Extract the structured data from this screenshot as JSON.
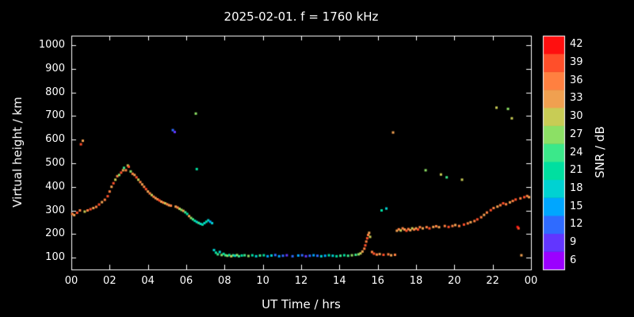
{
  "colors": {
    "background": "#000000",
    "text": "#ffffff",
    "frame": "#ffffff"
  },
  "chart_data": {
    "type": "scatter",
    "title": "2025-02-01. f = 1760 kHz",
    "xlabel": "UT Time / hrs",
    "ylabel": "Virtual height / km",
    "xlim": [
      0,
      24
    ],
    "ylim": [
      50,
      1040
    ],
    "grid": false,
    "x_tick_values": [
      0,
      2,
      4,
      6,
      8,
      10,
      12,
      14,
      16,
      18,
      20,
      22,
      24
    ],
    "x_tick_labels": [
      "00",
      "02",
      "04",
      "06",
      "08",
      "10",
      "12",
      "14",
      "16",
      "18",
      "20",
      "22",
      "00"
    ],
    "y_tick_values": [
      100,
      200,
      300,
      400,
      500,
      600,
      700,
      800,
      900,
      1000
    ],
    "y_tick_labels": [
      "100",
      "200",
      "300",
      "400",
      "500",
      "600",
      "700",
      "800",
      "900",
      "1000"
    ],
    "colorbar": {
      "label": "SNR / dB",
      "tick_values": [
        6,
        9,
        12,
        15,
        18,
        21,
        24,
        27,
        30,
        33,
        36,
        39,
        42
      ],
      "stops": [
        {
          "value": 6,
          "color": "#9b00ff"
        },
        {
          "value": 9,
          "color": "#6236ff"
        },
        {
          "value": 12,
          "color": "#2f6bff"
        },
        {
          "value": 15,
          "color": "#00a6ff"
        },
        {
          "value": 18,
          "color": "#00d2d2"
        },
        {
          "value": 21,
          "color": "#00dfa0"
        },
        {
          "value": 24,
          "color": "#3be88a"
        },
        {
          "value": 27,
          "color": "#8ce065"
        },
        {
          "value": 30,
          "color": "#c8cc55"
        },
        {
          "value": 33,
          "color": "#f0a050"
        },
        {
          "value": 36,
          "color": "#ff8040"
        },
        {
          "value": 39,
          "color": "#ff4f2a"
        },
        {
          "value": 42,
          "color": "#ff0f0f"
        }
      ]
    },
    "points": [
      [
        0.05,
        285,
        36
      ],
      [
        0.15,
        280,
        33
      ],
      [
        0.3,
        290,
        39
      ],
      [
        0.45,
        300,
        36
      ],
      [
        0.5,
        580,
        39
      ],
      [
        0.6,
        595,
        33
      ],
      [
        0.7,
        295,
        30
      ],
      [
        0.85,
        300,
        36
      ],
      [
        1.0,
        305,
        39
      ],
      [
        1.15,
        310,
        33
      ],
      [
        1.3,
        315,
        36
      ],
      [
        1.45,
        325,
        39
      ],
      [
        1.6,
        335,
        33
      ],
      [
        1.75,
        345,
        36
      ],
      [
        1.9,
        360,
        39
      ],
      [
        2.0,
        380,
        36
      ],
      [
        2.1,
        400,
        33
      ],
      [
        2.2,
        415,
        39
      ],
      [
        2.3,
        430,
        30
      ],
      [
        2.4,
        445,
        36
      ],
      [
        2.5,
        450,
        27
      ],
      [
        2.6,
        460,
        39
      ],
      [
        2.7,
        470,
        33
      ],
      [
        2.75,
        480,
        24
      ],
      [
        2.85,
        470,
        36
      ],
      [
        2.95,
        490,
        30
      ],
      [
        3.0,
        485,
        39
      ],
      [
        3.1,
        465,
        27
      ],
      [
        3.2,
        455,
        36
      ],
      [
        3.3,
        450,
        33
      ],
      [
        3.4,
        440,
        39
      ],
      [
        3.5,
        430,
        30
      ],
      [
        3.6,
        420,
        36
      ],
      [
        3.7,
        410,
        33
      ],
      [
        3.8,
        400,
        36
      ],
      [
        3.9,
        390,
        39
      ],
      [
        4.0,
        380,
        33
      ],
      [
        4.1,
        372,
        36
      ],
      [
        4.2,
        365,
        30
      ],
      [
        4.3,
        358,
        36
      ],
      [
        4.4,
        352,
        33
      ],
      [
        4.5,
        347,
        36
      ],
      [
        4.6,
        342,
        39
      ],
      [
        4.7,
        337,
        33
      ],
      [
        4.8,
        333,
        36
      ],
      [
        4.9,
        330,
        30
      ],
      [
        5.0,
        326,
        36
      ],
      [
        5.1,
        322,
        33
      ],
      [
        5.2,
        320,
        36
      ],
      [
        5.3,
        640,
        12
      ],
      [
        5.4,
        632,
        9
      ],
      [
        5.45,
        316,
        33
      ],
      [
        5.55,
        312,
        36
      ],
      [
        5.65,
        307,
        30
      ],
      [
        5.75,
        302,
        27
      ],
      [
        5.85,
        298,
        33
      ],
      [
        5.95,
        292,
        24
      ],
      [
        6.05,
        285,
        21
      ],
      [
        6.15,
        276,
        33
      ],
      [
        6.25,
        268,
        27
      ],
      [
        6.35,
        262,
        24
      ],
      [
        6.5,
        710,
        27
      ],
      [
        6.55,
        475,
        21
      ],
      [
        6.45,
        256,
        21
      ],
      [
        6.55,
        251,
        18
      ],
      [
        6.65,
        247,
        24
      ],
      [
        6.75,
        243,
        18
      ],
      [
        6.85,
        240,
        21
      ],
      [
        6.95,
        246,
        18
      ],
      [
        7.05,
        252,
        21
      ],
      [
        7.15,
        258,
        18
      ],
      [
        7.25,
        252,
        15
      ],
      [
        7.35,
        246,
        18
      ],
      [
        7.45,
        132,
        18
      ],
      [
        7.55,
        121,
        21
      ],
      [
        7.65,
        114,
        24
      ],
      [
        7.75,
        124,
        18
      ],
      [
        7.85,
        111,
        27
      ],
      [
        7.95,
        116,
        21
      ],
      [
        8.05,
        110,
        24
      ],
      [
        8.15,
        108,
        27
      ],
      [
        8.25,
        111,
        21
      ],
      [
        8.35,
        106,
        30
      ],
      [
        8.45,
        110,
        24
      ],
      [
        8.55,
        108,
        18
      ],
      [
        8.65,
        111,
        27
      ],
      [
        8.75,
        106,
        24
      ],
      [
        8.9,
        109,
        21
      ],
      [
        9.05,
        110,
        24
      ],
      [
        9.25,
        107,
        27
      ],
      [
        9.45,
        110,
        21
      ],
      [
        9.65,
        106,
        18
      ],
      [
        9.85,
        109,
        24
      ],
      [
        10.05,
        110,
        21
      ],
      [
        10.25,
        106,
        15
      ],
      [
        10.45,
        109,
        18
      ],
      [
        10.65,
        111,
        12
      ],
      [
        10.85,
        106,
        15
      ],
      [
        11.05,
        108,
        12
      ],
      [
        11.25,
        110,
        9
      ],
      [
        11.55,
        106,
        12
      ],
      [
        11.85,
        109,
        15
      ],
      [
        12.05,
        110,
        12
      ],
      [
        12.25,
        106,
        9
      ],
      [
        12.45,
        108,
        12
      ],
      [
        12.65,
        110,
        15
      ],
      [
        12.85,
        108,
        12
      ],
      [
        13.05,
        106,
        18
      ],
      [
        13.25,
        108,
        15
      ],
      [
        13.45,
        110,
        21
      ],
      [
        13.65,
        108,
        18
      ],
      [
        13.85,
        106,
        21
      ],
      [
        14.05,
        108,
        24
      ],
      [
        14.25,
        110,
        21
      ],
      [
        14.45,
        108,
        24
      ],
      [
        14.65,
        110,
        27
      ],
      [
        14.85,
        112,
        24
      ],
      [
        15.0,
        114,
        27
      ],
      [
        15.1,
        118,
        30
      ],
      [
        15.2,
        126,
        33
      ],
      [
        15.3,
        138,
        36
      ],
      [
        15.35,
        152,
        39
      ],
      [
        15.4,
        168,
        36
      ],
      [
        15.45,
        182,
        39
      ],
      [
        15.5,
        196,
        36
      ],
      [
        15.55,
        205,
        33
      ],
      [
        15.6,
        188,
        30
      ],
      [
        15.7,
        124,
        36
      ],
      [
        15.8,
        117,
        39
      ],
      [
        15.95,
        113,
        36
      ],
      [
        16.1,
        115,
        33
      ],
      [
        16.2,
        300,
        21
      ],
      [
        16.3,
        112,
        39
      ],
      [
        16.45,
        308,
        18
      ],
      [
        16.55,
        114,
        36
      ],
      [
        16.7,
        110,
        33
      ],
      [
        16.8,
        630,
        33
      ],
      [
        16.9,
        112,
        36
      ],
      [
        17.0,
        214,
        33
      ],
      [
        17.1,
        220,
        36
      ],
      [
        17.2,
        215,
        30
      ],
      [
        17.3,
        224,
        36
      ],
      [
        17.4,
        219,
        33
      ],
      [
        17.5,
        214,
        39
      ],
      [
        17.6,
        221,
        36
      ],
      [
        17.7,
        216,
        33
      ],
      [
        17.8,
        224,
        30
      ],
      [
        17.9,
        219,
        36
      ],
      [
        18.0,
        224,
        33
      ],
      [
        18.1,
        219,
        39
      ],
      [
        18.2,
        229,
        36
      ],
      [
        18.35,
        224,
        33
      ],
      [
        18.5,
        470,
        27
      ],
      [
        18.55,
        229,
        36
      ],
      [
        18.7,
        224,
        39
      ],
      [
        18.9,
        230,
        33
      ],
      [
        19.05,
        233,
        36
      ],
      [
        19.2,
        229,
        33
      ],
      [
        19.3,
        452,
        30
      ],
      [
        19.5,
        234,
        36
      ],
      [
        19.6,
        440,
        24
      ],
      [
        19.7,
        230,
        39
      ],
      [
        19.9,
        234,
        36
      ],
      [
        20.05,
        238,
        33
      ],
      [
        20.25,
        234,
        36
      ],
      [
        20.4,
        430,
        30
      ],
      [
        20.5,
        240,
        39
      ],
      [
        20.7,
        245,
        36
      ],
      [
        20.85,
        250,
        33
      ],
      [
        21.05,
        255,
        36
      ],
      [
        21.2,
        262,
        39
      ],
      [
        21.4,
        271,
        36
      ],
      [
        21.55,
        281,
        33
      ],
      [
        21.7,
        291,
        36
      ],
      [
        21.9,
        301,
        39
      ],
      [
        22.05,
        310,
        36
      ],
      [
        22.2,
        735,
        30
      ],
      [
        22.25,
        316,
        33
      ],
      [
        22.4,
        322,
        36
      ],
      [
        22.55,
        330,
        39
      ],
      [
        22.7,
        326,
        36
      ],
      [
        22.8,
        730,
        27
      ],
      [
        22.9,
        334,
        33
      ],
      [
        23.0,
        690,
        30
      ],
      [
        23.05,
        340,
        36
      ],
      [
        23.2,
        346,
        39
      ],
      [
        23.3,
        230,
        42
      ],
      [
        23.35,
        224,
        39
      ],
      [
        23.45,
        351,
        36
      ],
      [
        23.5,
        110,
        33
      ],
      [
        23.65,
        356,
        39
      ],
      [
        23.8,
        361,
        36
      ],
      [
        23.9,
        356,
        33
      ]
    ]
  }
}
